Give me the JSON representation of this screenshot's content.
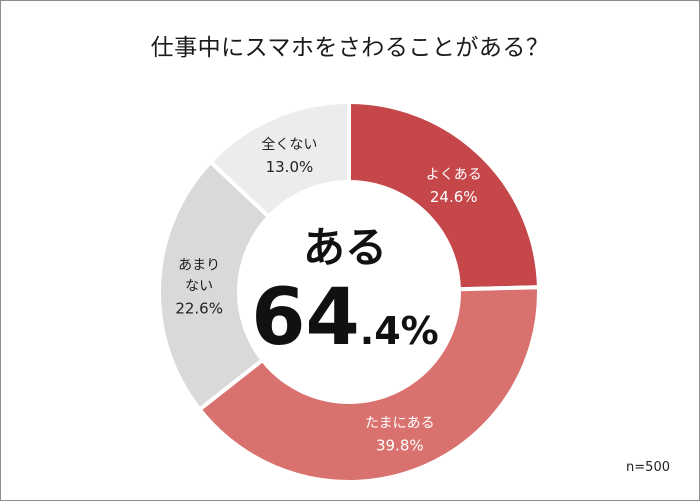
{
  "title": "仕事中にスマホをさわることがある？",
  "sample_note": "n=500",
  "center": {
    "label": "ある",
    "value_main": "64",
    "value_decimal": ".4%"
  },
  "chart_data": {
    "type": "pie",
    "donut": true,
    "start_angle_deg": 0,
    "direction": "clockwise",
    "slices": [
      {
        "label": [
          "よくある"
        ],
        "value": 24.6,
        "pct_text": "24.6%",
        "color": "#c5474a",
        "text_color": "#ffffff"
      },
      {
        "label": [
          "たまにある"
        ],
        "value": 39.8,
        "pct_text": "39.8%",
        "color": "#d9726f",
        "text_color": "#ffffff"
      },
      {
        "label": [
          "あまり",
          "ない"
        ],
        "value": 22.6,
        "pct_text": "22.6%",
        "color": "#d9d9d9",
        "text_color": "#222222"
      },
      {
        "label": [
          "全くない"
        ],
        "value": 13.0,
        "pct_text": "13.0%",
        "color": "#ececec",
        "text_color": "#222222"
      }
    ]
  }
}
